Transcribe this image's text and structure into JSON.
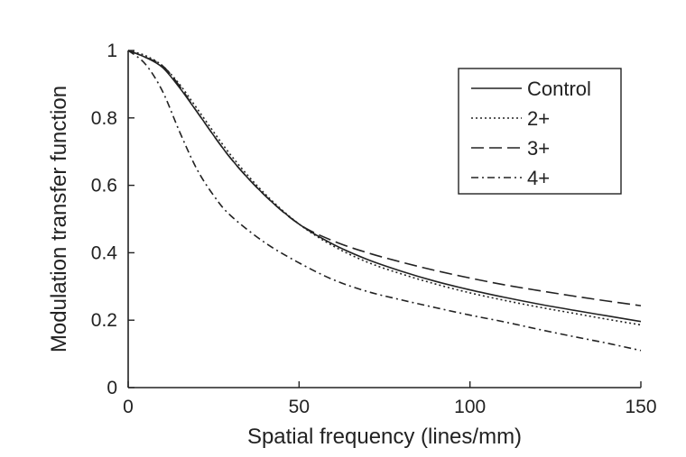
{
  "chart_data": {
    "type": "line",
    "xlabel": "Spatial frequency (lines/mm)",
    "ylabel": "Modulation transfer function",
    "xlim": [
      0,
      150
    ],
    "ylim": [
      0,
      1
    ],
    "xticks": [
      0,
      50,
      100,
      150
    ],
    "xtick_labels": [
      "0",
      "50",
      "100",
      "150"
    ],
    "yticks": [
      0,
      0.2,
      0.4,
      0.6,
      0.8,
      1
    ],
    "ytick_labels": [
      "0",
      "0.2",
      "0.4",
      "0.6",
      "0.8",
      "1"
    ],
    "grid": false,
    "legend_position": "top-right",
    "series": [
      {
        "name": "Control",
        "line_style": "solid",
        "x": [
          0,
          5,
          10,
          15,
          20,
          30,
          40,
          50,
          60,
          70,
          80,
          90,
          100,
          110,
          120,
          130,
          140,
          150
        ],
        "y": [
          1.0,
          0.98,
          0.95,
          0.89,
          0.82,
          0.68,
          0.57,
          0.485,
          0.425,
          0.38,
          0.345,
          0.315,
          0.29,
          0.268,
          0.248,
          0.23,
          0.213,
          0.196
        ]
      },
      {
        "name": "2+",
        "line_style": "dotted",
        "x": [
          0,
          5,
          10,
          15,
          20,
          30,
          40,
          50,
          60,
          70,
          80,
          90,
          100,
          110,
          120,
          130,
          140,
          150
        ],
        "y": [
          1.0,
          0.985,
          0.955,
          0.9,
          0.83,
          0.69,
          0.575,
          0.485,
          0.42,
          0.372,
          0.337,
          0.307,
          0.281,
          0.259,
          0.239,
          0.221,
          0.203,
          0.186
        ]
      },
      {
        "name": "3+",
        "line_style": "dashed",
        "x": [
          0,
          5,
          10,
          15,
          20,
          30,
          40,
          50,
          60,
          70,
          80,
          90,
          100,
          110,
          120,
          130,
          140,
          150
        ],
        "y": [
          1.0,
          0.98,
          0.955,
          0.895,
          0.82,
          0.68,
          0.57,
          0.485,
          0.435,
          0.4,
          0.372,
          0.347,
          0.325,
          0.305,
          0.288,
          0.272,
          0.257,
          0.243
        ]
      },
      {
        "name": "4+",
        "line_style": "dash-dot",
        "x": [
          0,
          5,
          10,
          15,
          20,
          25,
          30,
          40,
          50,
          60,
          70,
          80,
          90,
          100,
          110,
          120,
          130,
          140,
          150
        ],
        "y": [
          1.0,
          0.96,
          0.88,
          0.76,
          0.65,
          0.57,
          0.51,
          0.43,
          0.37,
          0.32,
          0.285,
          0.26,
          0.237,
          0.215,
          0.195,
          0.173,
          0.152,
          0.132,
          0.11
        ]
      }
    ]
  }
}
